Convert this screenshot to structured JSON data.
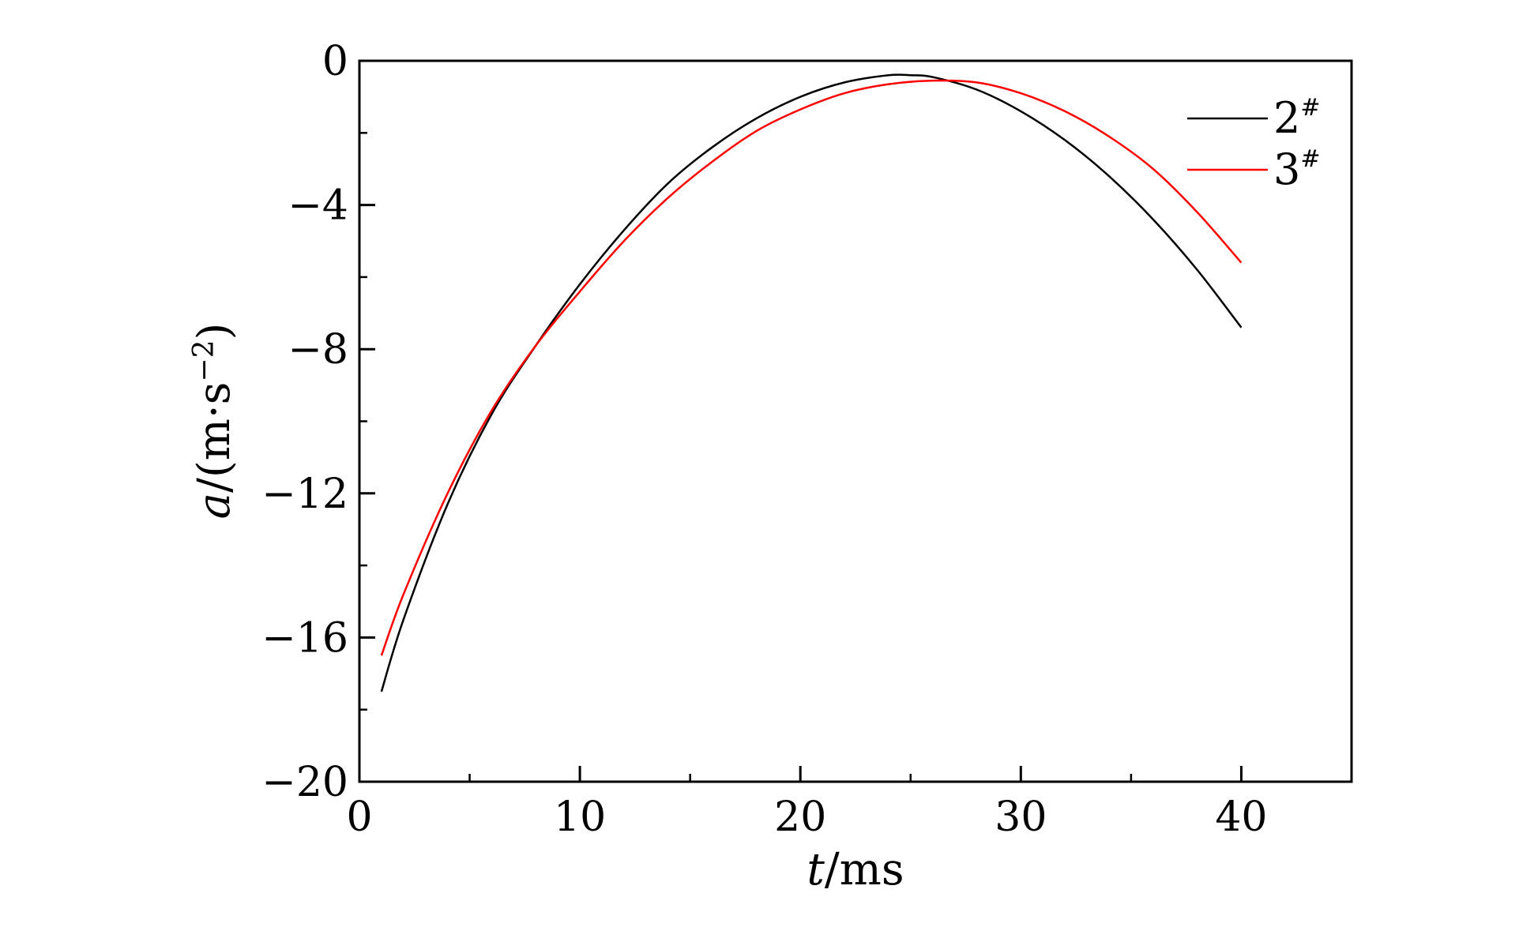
{
  "chart_data": {
    "type": "line",
    "title": "",
    "xlabel": {
      "var": "t",
      "unit": "/ms"
    },
    "ylabel": {
      "var": "a",
      "unit": "/(m·s",
      "exp": "−2",
      "close": ")"
    },
    "xlim": [
      0,
      45
    ],
    "ylim": [
      -20,
      0
    ],
    "xticks": [
      0,
      10,
      20,
      30,
      40
    ],
    "xtick_labels": [
      "0",
      "10",
      "20",
      "30",
      "40"
    ],
    "yticks": [
      0,
      -4,
      -8,
      -12,
      -16,
      -20
    ],
    "ytick_labels": [
      "0",
      "−4",
      "−8",
      "−12",
      "−16",
      "−20"
    ],
    "x_minor_step": 5,
    "y_minor_step": 2,
    "grid": false,
    "legend_position": "top-right",
    "series": [
      {
        "name": "2",
        "name_sup": "#",
        "color": "#000000",
        "x": [
          1,
          2,
          4,
          6,
          8,
          10,
          12,
          14,
          16,
          18,
          20,
          22,
          24,
          25,
          26,
          28,
          30,
          32,
          34,
          36,
          38,
          40
        ],
        "y": [
          -17.5,
          -15.5,
          -12.3,
          -9.8,
          -7.9,
          -6.2,
          -4.7,
          -3.4,
          -2.4,
          -1.6,
          -1.0,
          -0.6,
          -0.4,
          -0.4,
          -0.45,
          -0.8,
          -1.4,
          -2.2,
          -3.2,
          -4.4,
          -5.8,
          -7.4
        ]
      },
      {
        "name": "3",
        "name_sup": "#",
        "color": "#ff0000",
        "x": [
          1,
          2,
          4,
          6,
          8,
          10,
          12,
          14,
          16,
          18,
          20,
          22,
          24,
          26,
          28,
          30,
          32,
          34,
          36,
          38,
          40
        ],
        "y": [
          -16.5,
          -14.8,
          -12.0,
          -9.7,
          -7.9,
          -6.4,
          -5.0,
          -3.8,
          -2.8,
          -1.95,
          -1.35,
          -0.9,
          -0.65,
          -0.55,
          -0.6,
          -0.9,
          -1.4,
          -2.1,
          -3.0,
          -4.2,
          -5.6
        ]
      }
    ]
  }
}
